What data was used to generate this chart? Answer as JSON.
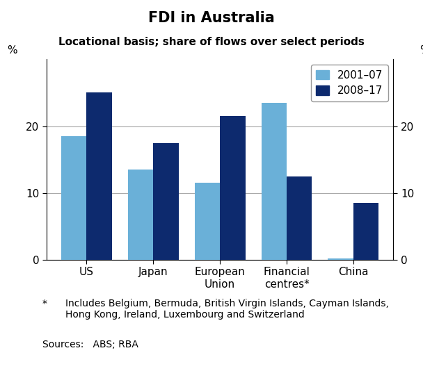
{
  "title": "FDI in Australia",
  "subtitle": "Locational basis; share of flows over select periods",
  "categories": [
    "US",
    "Japan",
    "European\nUnion",
    "Financial\ncentres*",
    "China"
  ],
  "series": [
    {
      "label": "2001–07",
      "color": "#6ab0d8",
      "values": [
        18.5,
        13.5,
        11.5,
        23.5,
        0.15
      ]
    },
    {
      "label": "2008–17",
      "color": "#0d2a6e",
      "values": [
        25.0,
        17.5,
        21.5,
        12.5,
        8.5
      ]
    }
  ],
  "ylim": [
    0,
    30
  ],
  "yticks": [
    0,
    10,
    20
  ],
  "ylabel_left": "%",
  "ylabel_right": "%",
  "bar_width": 0.38,
  "footnote_star": "*",
  "footnote_text": "Includes Belgium, Bermuda, British Virgin Islands, Cayman Islands,\nHong Kong, Ireland, Luxembourg and Switzerland",
  "sources": "Sources:   ABS; RBA",
  "grid_color": "#aaaaaa",
  "background_color": "#ffffff",
  "title_fontsize": 15,
  "subtitle_fontsize": 11,
  "tick_fontsize": 11,
  "legend_fontsize": 11,
  "footnote_fontsize": 10
}
